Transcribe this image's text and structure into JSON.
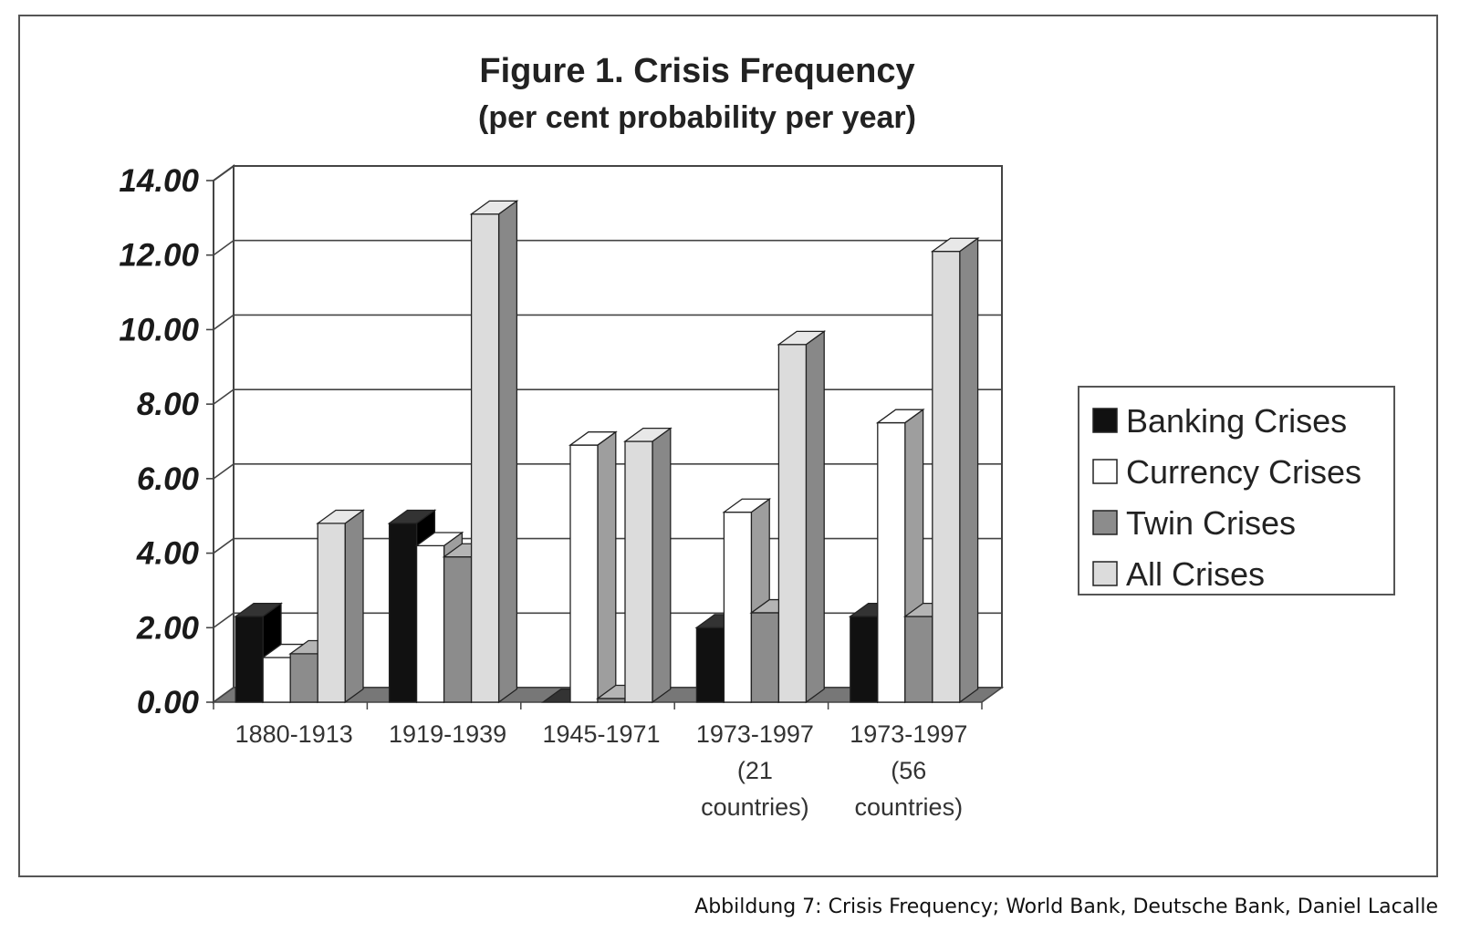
{
  "chart_data": {
    "type": "bar",
    "title": "Figure 1. Crisis Frequency",
    "subtitle": "(per cent probability per year)",
    "xlabel": "",
    "ylabel": "",
    "ylim": [
      0,
      14
    ],
    "yticks": [
      "0.00",
      "2.00",
      "4.00",
      "6.00",
      "8.00",
      "10.00",
      "12.00",
      "14.00"
    ],
    "grid": true,
    "legend_position": "right",
    "categories": [
      [
        "1880-1913"
      ],
      [
        "1919-1939"
      ],
      [
        "1945-1971"
      ],
      [
        "1973-1997",
        "(21",
        "countries)"
      ],
      [
        "1973-1997",
        "(56",
        "countries)"
      ]
    ],
    "series": [
      {
        "name": "Banking Crises",
        "color": "#111111",
        "values": [
          2.3,
          4.8,
          0.0,
          2.0,
          2.3
        ]
      },
      {
        "name": "Currency Crises",
        "color": "#ffffff",
        "values": [
          1.2,
          4.2,
          6.9,
          5.1,
          7.5
        ]
      },
      {
        "name": "Twin Crises",
        "color": "#8c8c8c",
        "values": [
          1.3,
          3.9,
          0.1,
          2.4,
          2.3
        ]
      },
      {
        "name": "All Crises",
        "color": "#dcdcdc",
        "values": [
          4.8,
          13.1,
          7.0,
          9.6,
          12.1
        ]
      }
    ]
  },
  "caption": "Abbildung 7: Crisis Frequency; World Bank, Deutsche Bank, Daniel Lacalle"
}
